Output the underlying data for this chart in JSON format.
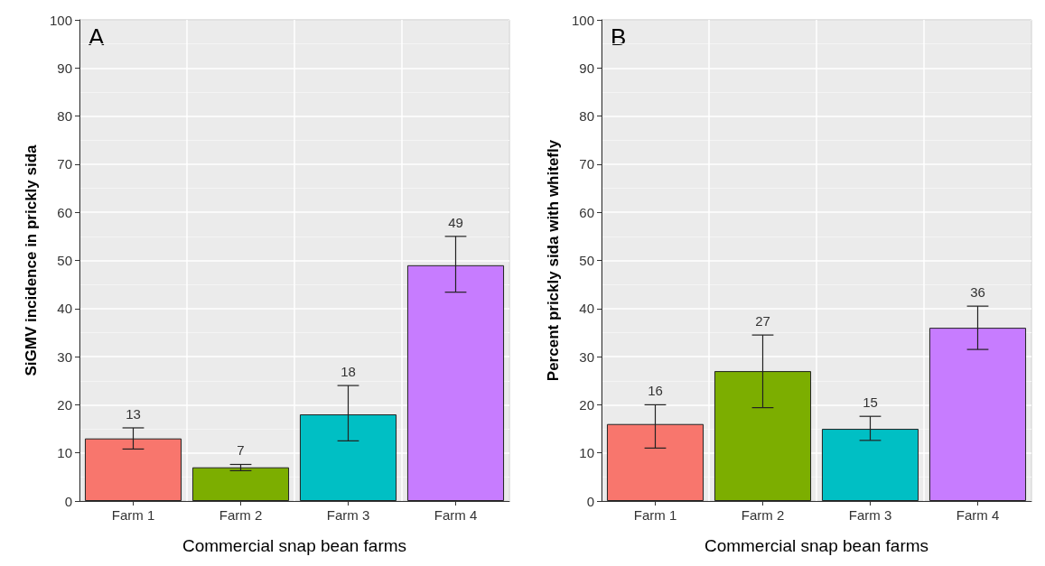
{
  "chart_data": [
    {
      "type": "bar",
      "annotations": [
        "A"
      ],
      "xlabel": "Commercial snap bean farms",
      "ylabel": "SiGMV incidence in prickly sida",
      "categories": [
        "Farm 1",
        "Farm 2",
        "Farm 3",
        "Farm 4"
      ],
      "values": [
        13,
        7,
        18,
        49
      ],
      "colors": [
        "#f8766d",
        "#7cae00",
        "#00bfc4",
        "#c77cff"
      ],
      "errors": [
        [
          10.8,
          15.2
        ],
        [
          6.3,
          7.6
        ],
        [
          12.5,
          24
        ],
        [
          43.4,
          55
        ]
      ],
      "ylim": [
        0,
        100
      ],
      "yticks": [
        0,
        10,
        20,
        30,
        40,
        50,
        60,
        70,
        80,
        90,
        100
      ],
      "grid": true,
      "data_labels": true
    },
    {
      "type": "bar",
      "annotations": [
        "B"
      ],
      "xlabel": "Commercial snap bean farms",
      "ylabel": "Percent prickly sida with whitefly",
      "categories": [
        "Farm 1",
        "Farm 2",
        "Farm 3",
        "Farm 4"
      ],
      "values": [
        16,
        27,
        15,
        36
      ],
      "colors": [
        "#f8766d",
        "#7cae00",
        "#00bfc4",
        "#c77cff"
      ],
      "errors": [
        [
          11,
          20
        ],
        [
          19.4,
          34.5
        ],
        [
          12.6,
          17.6
        ],
        [
          31.5,
          40.5
        ]
      ],
      "ylim": [
        0,
        100
      ],
      "yticks": [
        0,
        10,
        20,
        30,
        40,
        50,
        60,
        70,
        80,
        90,
        100
      ],
      "grid": true,
      "data_labels": true
    }
  ]
}
